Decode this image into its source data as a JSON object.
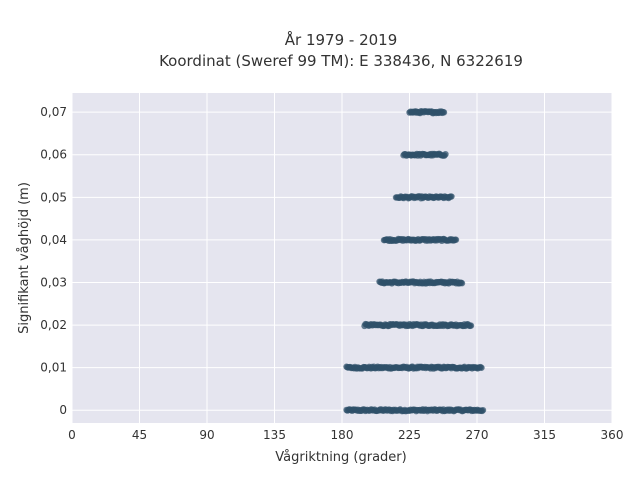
{
  "chart_data": {
    "type": "scatter",
    "title": "År 1979 - 2019",
    "subtitle": "Koordinat (Sweref 99 TM): E 338436, N 6322619",
    "xlabel": "Vågriktning (grader)",
    "ylabel": "Signifikant våghöjd (m)",
    "xlim": [
      0,
      360
    ],
    "ylim": [
      -0.003,
      0.0745
    ],
    "x_ticks": [
      0,
      45,
      90,
      135,
      180,
      225,
      270,
      315,
      360
    ],
    "x_tick_labels": [
      "0",
      "45",
      "90",
      "135",
      "180",
      "225",
      "270",
      "315",
      "360"
    ],
    "y_ticks": [
      0,
      0.01,
      0.02,
      0.03,
      0.04,
      0.05,
      0.06,
      0.07
    ],
    "y_tick_labels": [
      "0",
      "0,01",
      "0,02",
      "0,03",
      "0,04",
      "0,05",
      "0,06",
      "0,07"
    ],
    "grid": true,
    "marker_color": "#2f5169",
    "background_color": "#e5e5ef",
    "bands": [
      {
        "y": 0.0,
        "x_min": 183,
        "x_max": 274
      },
      {
        "y": 0.01,
        "x_min": 183,
        "x_max": 273
      },
      {
        "y": 0.02,
        "x_min": 195,
        "x_max": 266
      },
      {
        "y": 0.03,
        "x_min": 205,
        "x_max": 260
      },
      {
        "y": 0.04,
        "x_min": 208,
        "x_max": 256
      },
      {
        "y": 0.05,
        "x_min": 216,
        "x_max": 253
      },
      {
        "y": 0.06,
        "x_min": 221,
        "x_max": 249
      },
      {
        "y": 0.07,
        "x_min": 225,
        "x_max": 248
      }
    ]
  }
}
